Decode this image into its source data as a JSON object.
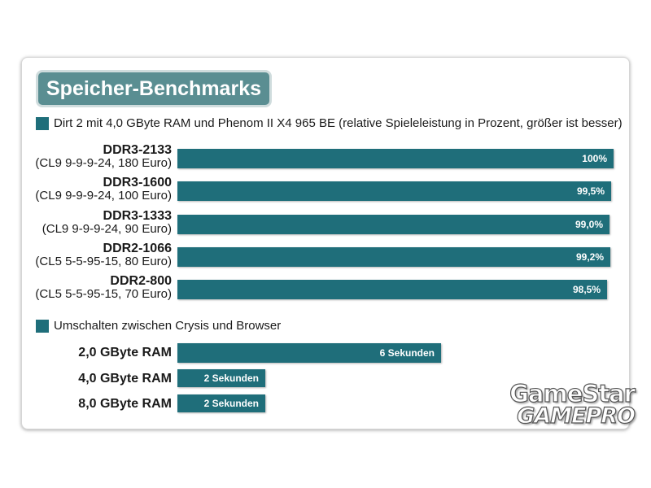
{
  "title": "Speicher-Benchmarks",
  "colors": {
    "bar": "#1f6e7a",
    "title_bg": "#5a8e92"
  },
  "chart_data": [
    {
      "type": "bar",
      "orientation": "horizontal",
      "title": "Dirt 2 mit 4,0 GByte RAM und Phenom II X4 965 BE (relative Spieleleistung in Prozent, größer ist besser)",
      "categories": [
        {
          "name": "DDR3-2133",
          "sub": "(CL9 9-9-9-24, 180 Euro)"
        },
        {
          "name": "DDR3-1600",
          "sub": "(CL9 9-9-9-24, 100 Euro)"
        },
        {
          "name": "DDR3-1333",
          "sub": "(CL9 9-9-9-24, 90 Euro)"
        },
        {
          "name": "DDR2-1066",
          "sub": "(CL5 5-5-95-15, 80 Euro)"
        },
        {
          "name": "DDR2-800",
          "sub": "(CL5 5-5-95-15, 70 Euro)"
        }
      ],
      "values": [
        100,
        99.5,
        99.0,
        99.2,
        98.5
      ],
      "value_labels": [
        "100%",
        "99,5%",
        "99,0%",
        "99,2%",
        "98,5%"
      ]
    },
    {
      "type": "bar",
      "orientation": "horizontal",
      "title": "Umschalten zwischen Crysis und Browser",
      "categories": [
        {
          "name": "2,0 GByte RAM"
        },
        {
          "name": "4,0 GByte RAM"
        },
        {
          "name": "8,0 GByte RAM"
        }
      ],
      "values": [
        6,
        2,
        2
      ],
      "value_labels": [
        "6 Sekunden",
        "2 Sekunden",
        "2 Sekunden"
      ]
    }
  ],
  "watermark": {
    "line1": "GameStar",
    "line2": "GAMEPRO"
  }
}
